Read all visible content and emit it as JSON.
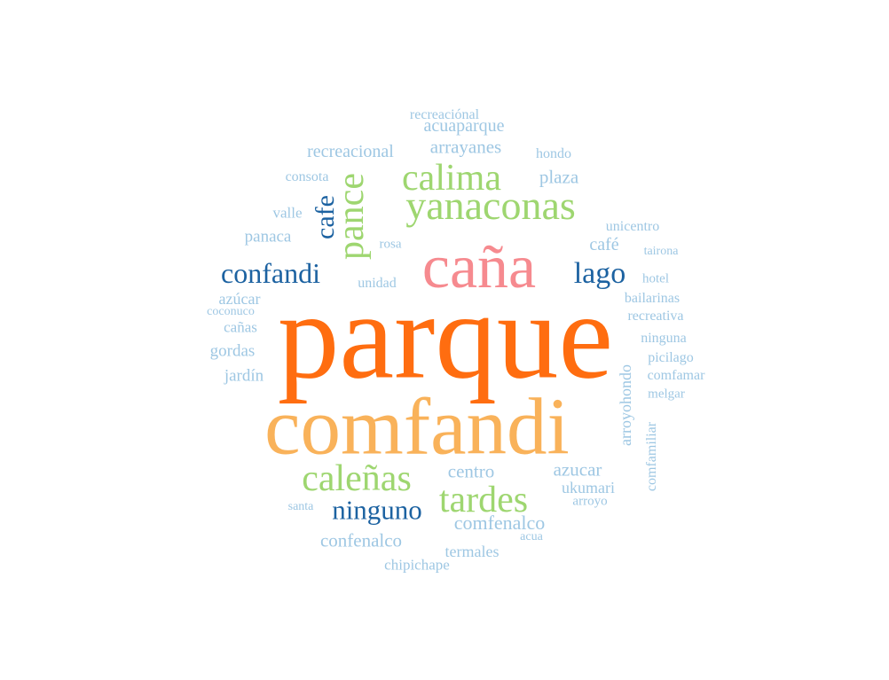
{
  "palette": {
    "orange_dark": "#ff6d10",
    "orange_light": "#f9b25a",
    "pink": "#f68a8f",
    "green": "#9ed670",
    "navy": "#1c62a1",
    "light_blue": "#9ec7e3"
  },
  "words": [
    {
      "text": "parque",
      "weight": 1.0,
      "color": "#ff6d10"
    },
    {
      "text": "comfandi",
      "weight": 0.8,
      "color": "#f9b25a"
    },
    {
      "text": "caña",
      "weight": 0.62,
      "color": "#f68a8f"
    },
    {
      "text": "yanaconas",
      "weight": 0.45,
      "color": "#9ed670"
    },
    {
      "text": "calima",
      "weight": 0.42,
      "color": "#9ed670"
    },
    {
      "text": "pance",
      "weight": 0.42,
      "color": "#9ed670",
      "vertical": true
    },
    {
      "text": "caleñas",
      "weight": 0.42,
      "color": "#9ed670"
    },
    {
      "text": "tardes",
      "weight": 0.42,
      "color": "#9ed670"
    },
    {
      "text": "confandi",
      "weight": 0.3,
      "color": "#1c62a1"
    },
    {
      "text": "lago",
      "weight": 0.32,
      "color": "#1c62a1"
    },
    {
      "text": "ninguno",
      "weight": 0.3,
      "color": "#1c62a1"
    },
    {
      "text": "cafe",
      "weight": 0.28,
      "color": "#1c62a1",
      "vertical": true
    },
    {
      "text": "recreacional",
      "weight": 0.18,
      "color": "#9ec7e3"
    },
    {
      "text": "recreaciónal",
      "weight": 0.15,
      "color": "#9ec7e3"
    },
    {
      "text": "acuaparque",
      "weight": 0.18,
      "color": "#9ec7e3"
    },
    {
      "text": "arrayanes",
      "weight": 0.19,
      "color": "#9ec7e3"
    },
    {
      "text": "hondo",
      "weight": 0.15,
      "color": "#9ec7e3"
    },
    {
      "text": "plaza",
      "weight": 0.19,
      "color": "#9ec7e3"
    },
    {
      "text": "consota",
      "weight": 0.15,
      "color": "#9ec7e3"
    },
    {
      "text": "valle",
      "weight": 0.16,
      "color": "#9ec7e3"
    },
    {
      "text": "unicentro",
      "weight": 0.15,
      "color": "#9ec7e3"
    },
    {
      "text": "panaca",
      "weight": 0.18,
      "color": "#9ec7e3"
    },
    {
      "text": "rosa",
      "weight": 0.14,
      "color": "#9ec7e3"
    },
    {
      "text": "café",
      "weight": 0.18,
      "color": "#9ec7e3"
    },
    {
      "text": "tairona",
      "weight": 0.14,
      "color": "#9ec7e3"
    },
    {
      "text": "hotel",
      "weight": 0.14,
      "color": "#9ec7e3"
    },
    {
      "text": "unidad",
      "weight": 0.15,
      "color": "#9ec7e3"
    },
    {
      "text": "azúcar",
      "weight": 0.16,
      "color": "#9ec7e3"
    },
    {
      "text": "coconuco",
      "weight": 0.13,
      "color": "#9ec7e3"
    },
    {
      "text": "bailarinas",
      "weight": 0.15,
      "color": "#9ec7e3"
    },
    {
      "text": "recreativa",
      "weight": 0.15,
      "color": "#9ec7e3"
    },
    {
      "text": "cañas",
      "weight": 0.16,
      "color": "#9ec7e3"
    },
    {
      "text": "ninguna",
      "weight": 0.16,
      "color": "#9ec7e3"
    },
    {
      "text": "gordas",
      "weight": 0.17,
      "color": "#9ec7e3"
    },
    {
      "text": "picilago",
      "weight": 0.15,
      "color": "#9ec7e3"
    },
    {
      "text": "jardín",
      "weight": 0.17,
      "color": "#9ec7e3"
    },
    {
      "text": "comfamar",
      "weight": 0.15,
      "color": "#9ec7e3"
    },
    {
      "text": "melgar",
      "weight": 0.14,
      "color": "#9ec7e3"
    },
    {
      "text": "arroyohondo",
      "weight": 0.17,
      "color": "#9ec7e3",
      "vertical": true
    },
    {
      "text": "comfamiliar",
      "weight": 0.15,
      "color": "#9ec7e3",
      "vertical": true
    },
    {
      "text": "centro",
      "weight": 0.2,
      "color": "#9ec7e3"
    },
    {
      "text": "azucar",
      "weight": 0.2,
      "color": "#9ec7e3"
    },
    {
      "text": "ukumari",
      "weight": 0.17,
      "color": "#9ec7e3"
    },
    {
      "text": "santa",
      "weight": 0.14,
      "color": "#9ec7e3"
    },
    {
      "text": "arroyo",
      "weight": 0.14,
      "color": "#9ec7e3"
    },
    {
      "text": "comfenalco",
      "weight": 0.2,
      "color": "#9ec7e3"
    },
    {
      "text": "acua",
      "weight": 0.14,
      "color": "#9ec7e3"
    },
    {
      "text": "confenalco",
      "weight": 0.19,
      "color": "#9ec7e3"
    },
    {
      "text": "termales",
      "weight": 0.17,
      "color": "#9ec7e3"
    },
    {
      "text": "chipichape",
      "weight": 0.16,
      "color": "#9ec7e3"
    }
  ]
}
